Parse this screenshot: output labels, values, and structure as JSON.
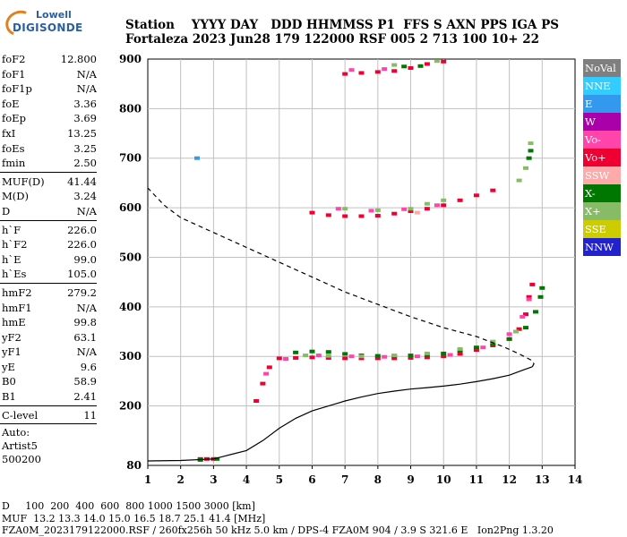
{
  "logo": {
    "top": "Lowell",
    "bottom": "DIGISONDE"
  },
  "header": {
    "line1": "Station    YYYY DAY   DDD HHMMSS P1  FFS S AXN PPS IGA PS",
    "line2": "Fortaleza 2023 Jun28 179 122000 RSF 005 2 713 100 10+ 22"
  },
  "params": [
    [
      [
        "foF2",
        "12.800"
      ],
      [
        "foF1",
        "N/A"
      ],
      [
        "foF1p",
        "N/A"
      ],
      [
        "foE",
        "3.36"
      ],
      [
        "foEp",
        "3.69"
      ],
      [
        "fxI",
        "13.25"
      ],
      [
        "foEs",
        "3.25"
      ],
      [
        "fmin",
        "2.50"
      ]
    ],
    [
      [
        "MUF(D)",
        "41.44"
      ],
      [
        "M(D)",
        "3.24"
      ],
      [
        "D",
        "N/A"
      ]
    ],
    [
      [
        "h`F",
        "226.0"
      ],
      [
        "h`F2",
        "226.0"
      ],
      [
        "h`E",
        "99.0"
      ],
      [
        "h`Es",
        "105.0"
      ]
    ],
    [
      [
        "hmF2",
        "279.2"
      ],
      [
        "hmF1",
        "N/A"
      ],
      [
        "hmE",
        "99.8"
      ],
      [
        "yF2",
        "63.1"
      ],
      [
        "yF1",
        "N/A"
      ],
      [
        "yE",
        "9.6"
      ],
      [
        "B0",
        "58.9"
      ],
      [
        "B1",
        "2.41"
      ]
    ],
    [
      [
        "C-level",
        "11"
      ]
    ]
  ],
  "auto": [
    "Auto:",
    "Artist5",
    "500200"
  ],
  "legend": [
    {
      "label": "NoVal",
      "color": "#7f7f7f"
    },
    {
      "label": "NNE",
      "color": "#33ccff"
    },
    {
      "label": "E",
      "color": "#3399ee"
    },
    {
      "label": "W",
      "color": "#aa00aa"
    },
    {
      "label": "Vo-",
      "color": "#ff44aa"
    },
    {
      "label": "Vo+",
      "color": "#ee0033"
    },
    {
      "label": "SSW",
      "color": "#ffaaaa"
    },
    {
      "label": "X-",
      "color": "#007700"
    },
    {
      "label": "X+",
      "color": "#88bb66"
    },
    {
      "label": "SSE",
      "color": "#cccc00"
    },
    {
      "label": "NNW",
      "color": "#2222cc"
    }
  ],
  "footer": {
    "line1": "D     100  200  400  600  800 1000 1500 3000 [km]",
    "line2": "MUF  13.2 13.3 14.0 15.0 16.5 18.7 25.1 41.4 [MHz]",
    "line3": "FZA0M_2023179122000.RSF / 260fx256h 50 kHz 5.0 km / DPS-4 FZA0M 904 / 3.9 S 321.6 E   Ion2Png 1.3.20"
  },
  "chart_data": {
    "type": "scatter",
    "xlabel": "",
    "ylabel": "",
    "xlim": [
      1,
      14
    ],
    "ylim": [
      80,
      900
    ],
    "x_ticks": [
      1,
      2,
      3,
      4,
      5,
      6,
      7,
      8,
      9,
      10,
      11,
      12,
      13,
      14
    ],
    "y_ticks": [
      80,
      200,
      300,
      400,
      500,
      600,
      700,
      800,
      900
    ],
    "grid": true,
    "series": [
      {
        "name": "Vo+",
        "color": "#ee0033",
        "points": [
          [
            2.6,
            93
          ],
          [
            2.8,
            93
          ],
          [
            3.0,
            93
          ],
          [
            4.3,
            210
          ],
          [
            4.5,
            245
          ],
          [
            4.7,
            278
          ],
          [
            5.0,
            296
          ],
          [
            5.5,
            297
          ],
          [
            6.0,
            298
          ],
          [
            6.5,
            297
          ],
          [
            7.0,
            296
          ],
          [
            7.5,
            296
          ],
          [
            8.0,
            296
          ],
          [
            8.5,
            296
          ],
          [
            9.0,
            297
          ],
          [
            9.5,
            298
          ],
          [
            10.0,
            300
          ],
          [
            10.5,
            305
          ],
          [
            11.0,
            313
          ],
          [
            11.5,
            322
          ],
          [
            12.0,
            335
          ],
          [
            12.3,
            355
          ],
          [
            12.5,
            385
          ],
          [
            12.6,
            420
          ],
          [
            12.7,
            445
          ],
          [
            6.0,
            590
          ],
          [
            6.5,
            585
          ],
          [
            7.0,
            583
          ],
          [
            7.5,
            583
          ],
          [
            8.0,
            584
          ],
          [
            8.5,
            588
          ],
          [
            9.0,
            593
          ],
          [
            9.5,
            598
          ],
          [
            10.0,
            605
          ],
          [
            10.5,
            615
          ],
          [
            11.0,
            625
          ],
          [
            11.5,
            635
          ],
          [
            7.0,
            870
          ],
          [
            7.5,
            872
          ],
          [
            8.0,
            874
          ],
          [
            8.5,
            876
          ],
          [
            9.0,
            882
          ],
          [
            9.5,
            890
          ],
          [
            10.0,
            895
          ]
        ]
      },
      {
        "name": "Vo-",
        "color": "#ff44aa",
        "points": [
          [
            4.6,
            265
          ],
          [
            5.2,
            295
          ],
          [
            6.2,
            302
          ],
          [
            7.2,
            300
          ],
          [
            8.2,
            299
          ],
          [
            9.2,
            300
          ],
          [
            10.2,
            303
          ],
          [
            11.2,
            318
          ],
          [
            12.0,
            345
          ],
          [
            12.4,
            380
          ],
          [
            12.6,
            415
          ],
          [
            6.8,
            598
          ],
          [
            7.8,
            594
          ],
          [
            8.8,
            597
          ],
          [
            9.8,
            605
          ],
          [
            7.2,
            878
          ],
          [
            8.2,
            880
          ]
        ]
      },
      {
        "name": "X-",
        "color": "#007700",
        "points": [
          [
            2.6,
            91
          ],
          [
            3.1,
            93
          ],
          [
            5.5,
            308
          ],
          [
            6.0,
            310
          ],
          [
            6.5,
            309
          ],
          [
            7.0,
            305
          ],
          [
            7.5,
            302
          ],
          [
            8.0,
            301
          ],
          [
            8.5,
            301
          ],
          [
            9.0,
            302
          ],
          [
            9.5,
            303
          ],
          [
            10.0,
            306
          ],
          [
            10.5,
            312
          ],
          [
            11.0,
            318
          ],
          [
            11.5,
            325
          ],
          [
            12.0,
            335
          ],
          [
            12.5,
            358
          ],
          [
            12.8,
            390
          ],
          [
            12.95,
            420
          ],
          [
            13.0,
            438
          ],
          [
            12.6,
            700
          ],
          [
            12.65,
            715
          ],
          [
            8.8,
            885
          ],
          [
            9.3,
            886
          ]
        ]
      },
      {
        "name": "X+",
        "color": "#88bb66",
        "points": [
          [
            5.8,
            302
          ],
          [
            6.5,
            301
          ],
          [
            7.5,
            300
          ],
          [
            8.5,
            302
          ],
          [
            9.5,
            306
          ],
          [
            10.5,
            315
          ],
          [
            11.5,
            330
          ],
          [
            12.2,
            350
          ],
          [
            7.0,
            598
          ],
          [
            8.0,
            595
          ],
          [
            9.0,
            598
          ],
          [
            9.5,
            608
          ],
          [
            10.0,
            615
          ],
          [
            12.3,
            655
          ],
          [
            12.5,
            680
          ],
          [
            12.65,
            730
          ],
          [
            8.5,
            888
          ],
          [
            9.8,
            896
          ]
        ]
      },
      {
        "name": "E",
        "color": "#3399ee",
        "points": [
          [
            2.5,
            700
          ]
        ]
      },
      {
        "name": "SSW",
        "color": "#ffaaaa",
        "points": [
          [
            9.2,
            590
          ]
        ]
      },
      {
        "name": "profile",
        "color": "#000000",
        "style": "solid",
        "points": [
          [
            1.0,
            89
          ],
          [
            2.0,
            90
          ],
          [
            3.0,
            93
          ],
          [
            4.0,
            110
          ],
          [
            4.5,
            130
          ],
          [
            5.0,
            155
          ],
          [
            5.5,
            175
          ],
          [
            6.0,
            190
          ],
          [
            6.5,
            200
          ],
          [
            7.0,
            210
          ],
          [
            7.5,
            218
          ],
          [
            8.0,
            225
          ],
          [
            8.5,
            230
          ],
          [
            9.0,
            234
          ],
          [
            9.5,
            237
          ],
          [
            10.0,
            240
          ],
          [
            10.5,
            244
          ],
          [
            11.0,
            249
          ],
          [
            11.5,
            255
          ],
          [
            12.0,
            262
          ],
          [
            12.4,
            272
          ],
          [
            12.7,
            279
          ],
          [
            12.75,
            285
          ],
          [
            12.65,
            293
          ],
          [
            12.3,
            305
          ],
          [
            11.8,
            320
          ],
          [
            11.0,
            340
          ],
          [
            10.0,
            358
          ],
          [
            9.0,
            380
          ],
          [
            8.0,
            405
          ],
          [
            7.0,
            430
          ],
          [
            6.0,
            460
          ],
          [
            5.0,
            490
          ],
          [
            4.0,
            520
          ],
          [
            3.0,
            550
          ],
          [
            2.0,
            580
          ],
          [
            1.5,
            605
          ],
          [
            1.0,
            640
          ]
        ]
      }
    ]
  }
}
